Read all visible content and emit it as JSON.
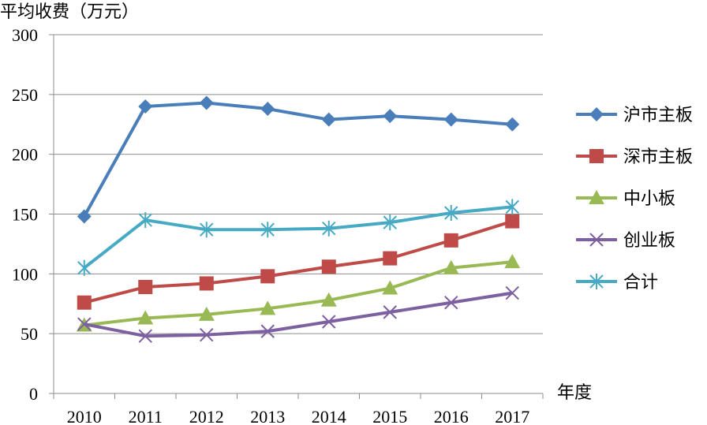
{
  "chart_data": {
    "type": "line",
    "title": "",
    "ylabel": "平均收费（万元）",
    "xlabel": "年度",
    "ylim": [
      0,
      300
    ],
    "yticks": [
      0,
      50,
      100,
      150,
      200,
      250,
      300
    ],
    "grid": true,
    "legend_position": "right",
    "categories": [
      "2010",
      "2011",
      "2012",
      "2013",
      "2014",
      "2015",
      "2016",
      "2017"
    ],
    "series": [
      {
        "name": "沪市主板",
        "color": "#4a7ebb",
        "marker": "diamond",
        "values": [
          148,
          240,
          243,
          238,
          229,
          232,
          229,
          225
        ]
      },
      {
        "name": "深市主板",
        "color": "#be4b48",
        "marker": "square",
        "values": [
          76,
          89,
          92,
          98,
          106,
          113,
          128,
          144
        ]
      },
      {
        "name": "中小板",
        "color": "#98b954",
        "marker": "triangle",
        "values": [
          57,
          63,
          66,
          71,
          78,
          88,
          105,
          110
        ]
      },
      {
        "name": "创业板",
        "color": "#7d60a0",
        "marker": "x",
        "values": [
          58,
          48,
          49,
          52,
          60,
          68,
          76,
          84
        ]
      },
      {
        "name": "合计",
        "color": "#46aac5",
        "marker": "star",
        "values": [
          105,
          145,
          137,
          137,
          138,
          143,
          151,
          156
        ]
      }
    ]
  }
}
